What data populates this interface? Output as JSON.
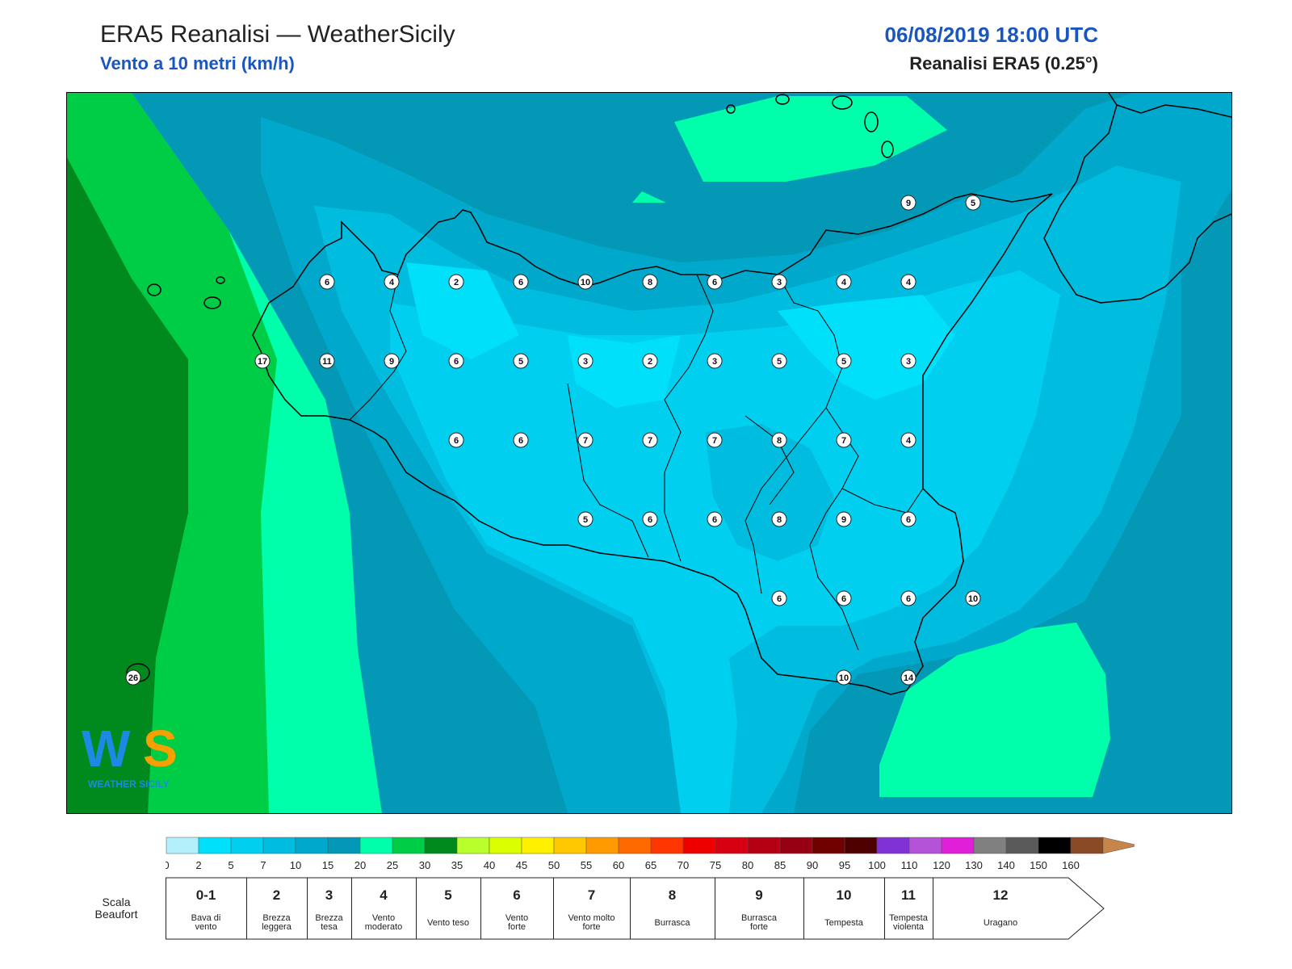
{
  "header": {
    "title": "ERA5 Reanalisi — WeatherSicily",
    "subtitle": "Vento a 10 metri (km/h)",
    "datetime": "06/08/2019 18:00 UTC",
    "source": "Reanalisi ERA5 (0.25°)"
  },
  "logo": {
    "text": "WEATHER SICILY"
  },
  "stations": [
    {
      "lon": 12.0,
      "lat": 38.9,
      "v": "6"
    },
    {
      "lon": 12.5,
      "lat": 38.9,
      "v": "4"
    },
    {
      "lon": 13.0,
      "lat": 38.9,
      "v": "2"
    },
    {
      "lon": 13.5,
      "lat": 38.9,
      "v": "6"
    },
    {
      "lon": 14.0,
      "lat": 38.9,
      "v": "10"
    },
    {
      "lon": 14.5,
      "lat": 38.9,
      "v": "8"
    },
    {
      "lon": 15.0,
      "lat": 38.9,
      "v": "6"
    },
    {
      "lon": 15.5,
      "lat": 38.9,
      "v": "3"
    },
    {
      "lon": 16.0,
      "lat": 38.9,
      "v": "4"
    },
    {
      "lon": 16.5,
      "lat": 38.9,
      "v": "4"
    },
    {
      "lon": 16.5,
      "lat": 39.6,
      "v": "9"
    },
    {
      "lon": 17.0,
      "lat": 39.6,
      "v": "5"
    },
    {
      "lon": 11.5,
      "lat": 38.2,
      "v": "17"
    },
    {
      "lon": 12.0,
      "lat": 38.2,
      "v": "11"
    },
    {
      "lon": 12.5,
      "lat": 38.2,
      "v": "9"
    },
    {
      "lon": 13.0,
      "lat": 38.2,
      "v": "6"
    },
    {
      "lon": 13.5,
      "lat": 38.2,
      "v": "5"
    },
    {
      "lon": 14.0,
      "lat": 38.2,
      "v": "3"
    },
    {
      "lon": 14.5,
      "lat": 38.2,
      "v": "2"
    },
    {
      "lon": 15.0,
      "lat": 38.2,
      "v": "3"
    },
    {
      "lon": 15.5,
      "lat": 38.2,
      "v": "5"
    },
    {
      "lon": 16.0,
      "lat": 38.2,
      "v": "5"
    },
    {
      "lon": 16.5,
      "lat": 38.2,
      "v": "3"
    },
    {
      "lon": 13.0,
      "lat": 37.5,
      "v": "6"
    },
    {
      "lon": 13.5,
      "lat": 37.5,
      "v": "6"
    },
    {
      "lon": 14.0,
      "lat": 37.5,
      "v": "7"
    },
    {
      "lon": 14.5,
      "lat": 37.5,
      "v": "7"
    },
    {
      "lon": 15.0,
      "lat": 37.5,
      "v": "7"
    },
    {
      "lon": 15.5,
      "lat": 37.5,
      "v": "8"
    },
    {
      "lon": 16.0,
      "lat": 37.5,
      "v": "7"
    },
    {
      "lon": 16.5,
      "lat": 37.5,
      "v": "4"
    },
    {
      "lon": 14.0,
      "lat": 36.8,
      "v": "5"
    },
    {
      "lon": 14.5,
      "lat": 36.8,
      "v": "6"
    },
    {
      "lon": 15.0,
      "lat": 36.8,
      "v": "6"
    },
    {
      "lon": 15.5,
      "lat": 36.8,
      "v": "8"
    },
    {
      "lon": 16.0,
      "lat": 36.8,
      "v": "9"
    },
    {
      "lon": 16.5,
      "lat": 36.8,
      "v": "6"
    },
    {
      "lon": 15.5,
      "lat": 36.1,
      "v": "6"
    },
    {
      "lon": 16.0,
      "lat": 36.1,
      "v": "6"
    },
    {
      "lon": 16.5,
      "lat": 36.1,
      "v": "6"
    },
    {
      "lon": 17.0,
      "lat": 36.1,
      "v": "10"
    },
    {
      "lon": 16.0,
      "lat": 35.4,
      "v": "10"
    },
    {
      "lon": 16.5,
      "lat": 35.4,
      "v": "14"
    },
    {
      "lon": 10.5,
      "lat": 35.4,
      "v": "26"
    }
  ],
  "colorbar": {
    "ticks": [
      "0",
      "2",
      "5",
      "7",
      "10",
      "15",
      "20",
      "25",
      "30",
      "35",
      "40",
      "45",
      "50",
      "55",
      "60",
      "65",
      "70",
      "75",
      "80",
      "85",
      "90",
      "95",
      "100",
      "110",
      "120",
      "130",
      "140",
      "150",
      "160"
    ],
    "colors": [
      "#b2f1fb",
      "#00e0fb",
      "#00cff0",
      "#00bcdf",
      "#00a8cb",
      "#0298b6",
      "#00ffaa",
      "#00cd46",
      "#008a1e",
      "#b8ff2b",
      "#dcff00",
      "#fff000",
      "#ffc800",
      "#ff9b00",
      "#ff6a00",
      "#ff3600",
      "#ee0000",
      "#d70012",
      "#b40012",
      "#960012",
      "#6e0000",
      "#4e0000",
      "#8032d6",
      "#b452d8",
      "#e21fd8",
      "#808080",
      "#5a5a5a",
      "#000000",
      "#8a4a26",
      "#c6854a"
    ]
  },
  "beaufort": {
    "label": "Scala Beaufort",
    "bins": [
      {
        "num": "0-1",
        "desc": "Bava di vento"
      },
      {
        "num": "2",
        "desc": "Brezza leggera"
      },
      {
        "num": "3",
        "desc": "Brezza tesa"
      },
      {
        "num": "4",
        "desc": "Vento moderato"
      },
      {
        "num": "5",
        "desc": "Vento teso"
      },
      {
        "num": "6",
        "desc": "Vento forte"
      },
      {
        "num": "7",
        "desc": "Vento molto forte"
      },
      {
        "num": "8",
        "desc": "Burrasca"
      },
      {
        "num": "9",
        "desc": "Burrasca forte"
      },
      {
        "num": "10",
        "desc": "Tempesta"
      },
      {
        "num": "11",
        "desc": "Tempesta violenta"
      },
      {
        "num": "12",
        "desc": "Uragano"
      }
    ]
  }
}
